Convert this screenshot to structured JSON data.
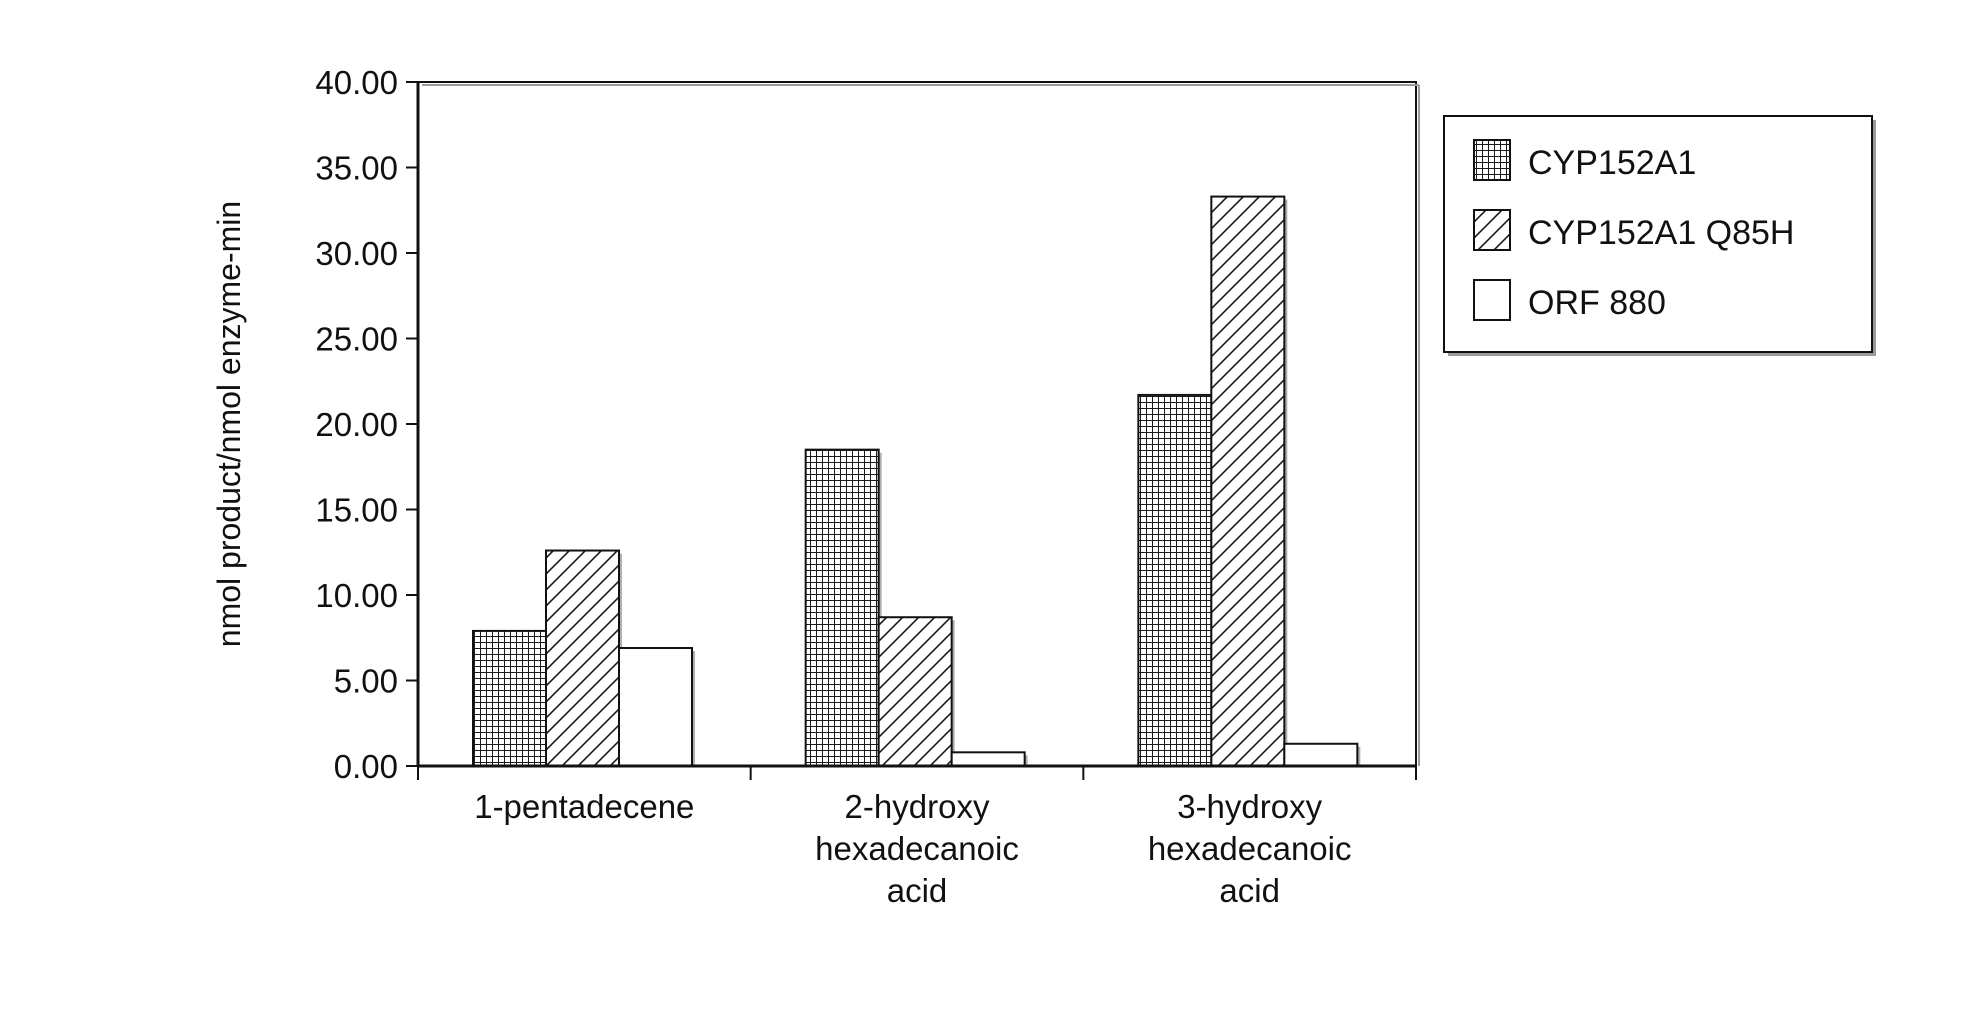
{
  "chart_data": {
    "type": "bar",
    "title": "",
    "xlabel": "",
    "ylabel": "nmol product/nmol enzyme-min",
    "ylim": [
      0,
      40
    ],
    "yticks": [
      "0.00",
      "5.00",
      "10.00",
      "15.00",
      "20.00",
      "25.00",
      "30.00",
      "35.00",
      "40.00"
    ],
    "grid": false,
    "legend_position": "right",
    "categories": [
      [
        "1-pentadecene"
      ],
      [
        "2-hydroxy",
        "hexadecanoic",
        "acid"
      ],
      [
        "3-hydroxy",
        "hexadecanoic",
        "acid"
      ]
    ],
    "series": [
      {
        "name": "CYP152A1",
        "pattern": "crosshatch-grid",
        "values": [
          7.9,
          18.5,
          21.7
        ]
      },
      {
        "name": "CYP152A1 Q85H",
        "pattern": "diagonal-hatch",
        "values": [
          12.6,
          8.7,
          33.3
        ]
      },
      {
        "name": "ORF 880",
        "pattern": "white",
        "values": [
          6.9,
          0.8,
          1.3
        ]
      }
    ],
    "colors": {
      "axis": "#111111",
      "grid_pattern": "#1a1a1a",
      "bar_outline": "#111111",
      "background": "#ffffff"
    }
  }
}
